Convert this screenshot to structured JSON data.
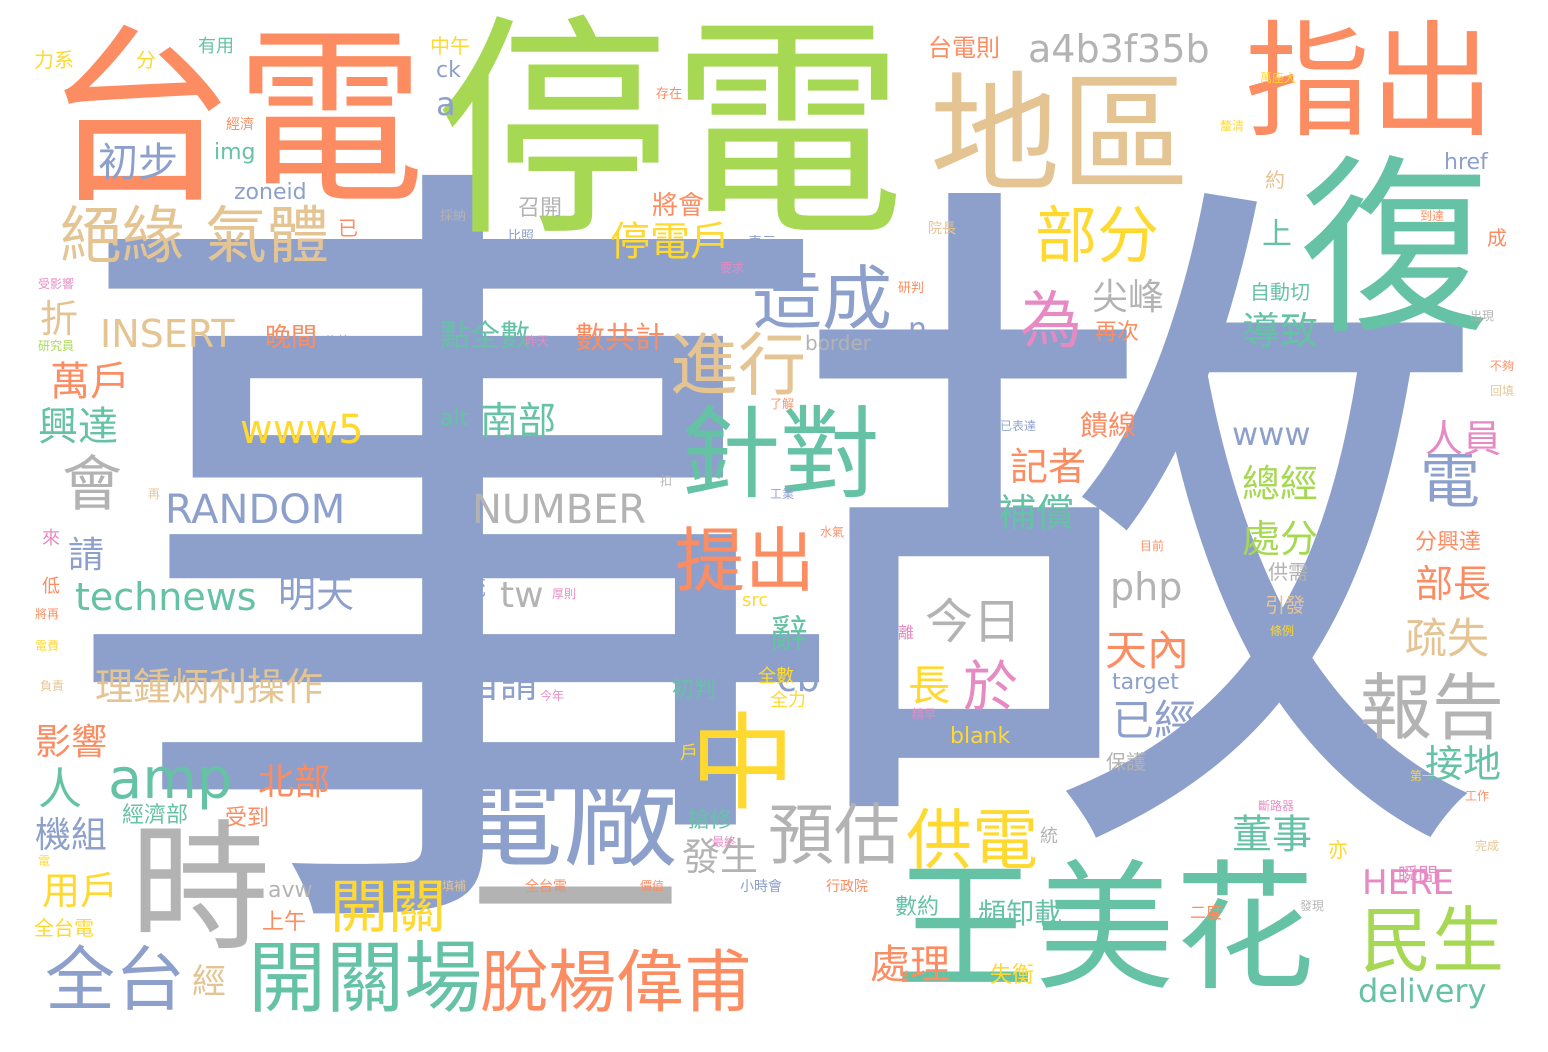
{
  "palette": {
    "blue": "#8da0cb",
    "green": "#a6d854",
    "teal": "#66c2a5",
    "orange": "#fc8d62",
    "pink": "#e78ac3",
    "yellow": "#ffd92f",
    "tan": "#e5c494",
    "gray": "#b3b3b3"
  },
  "words": [
    {
      "text": "事",
      "color": "blue"
    },
    {
      "text": "故",
      "color": "blue"
    },
    {
      "text": "停電",
      "color": "green"
    },
    {
      "text": "台電",
      "color": "orange"
    },
    {
      "text": "復",
      "color": "teal"
    },
    {
      "text": "地區",
      "color": "tan"
    },
    {
      "text": "指出",
      "color": "orange"
    },
    {
      "text": "王美花",
      "color": "teal"
    },
    {
      "text": "電廠",
      "color": "blue"
    },
    {
      "text": "時",
      "color": "gray"
    },
    {
      "text": "中",
      "color": "yellow"
    },
    {
      "text": "一",
      "color": "gray"
    },
    {
      "text": "針對",
      "color": "teal"
    },
    {
      "text": "開關場",
      "color": "teal"
    },
    {
      "text": "脫楊偉甫",
      "color": "orange"
    },
    {
      "text": "造成",
      "color": "blue"
    },
    {
      "text": "部分",
      "color": "yellow"
    },
    {
      "text": "絕緣",
      "color": "tan"
    },
    {
      "text": "氣體",
      "color": "tan"
    },
    {
      "text": "全台",
      "color": "blue"
    },
    {
      "text": "民生",
      "color": "green"
    },
    {
      "text": "報告",
      "color": "gray"
    },
    {
      "text": "提出",
      "color": "orange"
    },
    {
      "text": "進行",
      "color": "tan"
    },
    {
      "text": "預估",
      "color": "gray"
    },
    {
      "text": "供電",
      "color": "yellow"
    },
    {
      "text": "開關",
      "color": "yellow"
    },
    {
      "text": "amp",
      "color": "teal"
    },
    {
      "text": "為",
      "color": "pink"
    },
    {
      "text": "電",
      "color": "blue"
    },
    {
      "text": "會",
      "color": "gray"
    },
    {
      "text": "初步",
      "color": "blue"
    },
    {
      "text": "a4b3f35b",
      "color": "gray"
    },
    {
      "text": "停電戶",
      "color": "yellow"
    },
    {
      "text": "今日",
      "color": "gray"
    },
    {
      "text": "於",
      "color": "pink"
    },
    {
      "text": "跳",
      "color": "orange"
    },
    {
      "text": "處理",
      "color": "orange"
    },
    {
      "text": "萬戶",
      "color": "orange"
    },
    {
      "text": "興達",
      "color": "teal"
    },
    {
      "text": "INSERT",
      "color": "tan"
    },
    {
      "text": "RANDOM",
      "color": "blue"
    },
    {
      "text": "NUMBER",
      "color": "gray"
    },
    {
      "text": "www5",
      "color": "yellow"
    },
    {
      "text": "technews",
      "color": "teal"
    },
    {
      "text": "明天",
      "color": "blue"
    },
    {
      "text": "理鍾炳利操作",
      "color": "tan"
    },
    {
      "text": "南部",
      "color": "teal"
    },
    {
      "text": "www",
      "color": "blue"
    },
    {
      "text": "php",
      "color": "gray"
    },
    {
      "text": "tw",
      "color": "gray"
    },
    {
      "text": "自請",
      "color": "blue"
    },
    {
      "text": "長",
      "color": "yellow"
    },
    {
      "text": "天內",
      "color": "orange"
    },
    {
      "text": "已經",
      "color": "blue"
    },
    {
      "text": "尖峰",
      "color": "gray"
    },
    {
      "text": "導致",
      "color": "teal"
    },
    {
      "text": "總經",
      "color": "green"
    },
    {
      "text": "處分",
      "color": "green"
    },
    {
      "text": "部長",
      "color": "orange"
    },
    {
      "text": "疏失",
      "color": "tan"
    },
    {
      "text": "接地",
      "color": "teal"
    },
    {
      "text": "人員",
      "color": "pink"
    },
    {
      "text": "記者",
      "color": "orange"
    },
    {
      "text": "補償",
      "color": "teal"
    },
    {
      "text": "饋線",
      "color": "orange"
    },
    {
      "text": "董事",
      "color": "teal"
    },
    {
      "text": "發生",
      "color": "gray"
    },
    {
      "text": "北部",
      "color": "orange"
    },
    {
      "text": "影響",
      "color": "orange"
    },
    {
      "text": "人",
      "color": "teal"
    },
    {
      "text": "機組",
      "color": "blue"
    },
    {
      "text": "用戶",
      "color": "yellow"
    },
    {
      "text": "請",
      "color": "blue"
    },
    {
      "text": "折",
      "color": "tan"
    },
    {
      "text": "晚間",
      "color": "orange"
    },
    {
      "text": "點全數",
      "color": "teal"
    },
    {
      "text": "數共計",
      "color": "orange"
    },
    {
      "text": "cb",
      "color": "blue"
    },
    {
      "text": "辭",
      "color": "teal"
    },
    {
      "text": "HERE",
      "color": "pink"
    },
    {
      "text": "delivery",
      "color": "teal"
    },
    {
      "text": "經",
      "color": "tan"
    },
    {
      "text": "上午",
      "color": "orange"
    },
    {
      "text": "頻卸載",
      "color": "teal"
    },
    {
      "text": "數約",
      "color": "teal"
    },
    {
      "text": "失衡",
      "color": "yellow"
    },
    {
      "text": "搶修",
      "color": "teal"
    },
    {
      "text": "初判",
      "color": "teal"
    },
    {
      "text": "經濟部",
      "color": "teal"
    },
    {
      "text": "受到",
      "color": "orange"
    },
    {
      "text": "avw",
      "color": "gray"
    },
    {
      "text": "n",
      "color": "blue"
    },
    {
      "text": "上",
      "color": "teal"
    },
    {
      "text": "將會",
      "color": "orange"
    },
    {
      "text": "召開",
      "color": "gray"
    },
    {
      "text": "再次",
      "color": "orange"
    },
    {
      "text": "自動切",
      "color": "teal"
    },
    {
      "text": "border",
      "color": "gray"
    },
    {
      "text": "a",
      "color": "blue"
    },
    {
      "text": "ck",
      "color": "blue"
    },
    {
      "text": "img",
      "color": "teal"
    },
    {
      "text": "zoneid",
      "color": "blue"
    },
    {
      "text": "中午",
      "color": "yellow"
    },
    {
      "text": "台電則",
      "color": "orange"
    },
    {
      "text": "有用",
      "color": "teal"
    },
    {
      "text": "分",
      "color": "yellow"
    },
    {
      "text": "力系",
      "color": "yellow"
    },
    {
      "text": "alt",
      "color": "teal"
    },
    {
      "text": "系統",
      "color": "blue"
    },
    {
      "text": "src",
      "color": "yellow"
    },
    {
      "text": "target",
      "color": "blue"
    },
    {
      "text": "blank",
      "color": "yellow"
    },
    {
      "text": "href",
      "color": "blue"
    },
    {
      "text": "約",
      "color": "tan"
    },
    {
      "text": "成",
      "color": "orange"
    },
    {
      "text": "已",
      "color": "orange"
    },
    {
      "text": "分興達",
      "color": "orange"
    },
    {
      "text": "供需",
      "color": "gray"
    },
    {
      "text": "引發",
      "color": "tan"
    },
    {
      "text": "保護",
      "color": "gray"
    },
    {
      "text": "全數",
      "color": "yellow"
    },
    {
      "text": "全力",
      "color": "yellow"
    },
    {
      "text": "戶",
      "color": "yellow"
    },
    {
      "text": "低",
      "color": "orange"
    },
    {
      "text": "來",
      "color": "pink"
    },
    {
      "text": "全台電",
      "color": "yellow"
    },
    {
      "text": "瞬間",
      "color": "pink"
    },
    {
      "text": "亦",
      "color": "yellow"
    },
    {
      "text": "統",
      "color": "gray"
    },
    {
      "text": "二度",
      "color": "orange"
    },
    {
      "text": "表示",
      "color": "blue"
    },
    {
      "text": "比照",
      "color": "blue"
    },
    {
      "text": "力度",
      "color": "blue"
    },
    {
      "text": "加倍",
      "color": "blue"
    },
    {
      "text": "採納",
      "color": "gray"
    },
    {
      "text": "經濟",
      "color": "orange"
    },
    {
      "text": "存在",
      "color": "orange"
    },
    {
      "text": "釐清",
      "color": "yellow"
    },
    {
      "text": "全台電",
      "color": "orange"
    },
    {
      "text": "小時會",
      "color": "blue"
    },
    {
      "text": "行政院",
      "color": "orange"
    },
    {
      "text": "填補",
      "color": "tan"
    },
    {
      "text": "研判",
      "color": "orange"
    },
    {
      "text": "昨天",
      "color": "pink"
    },
    {
      "text": "修剪",
      "color": "blue"
    },
    {
      "text": "今年",
      "color": "pink"
    },
    {
      "text": "厚則",
      "color": "pink"
    },
    {
      "text": "精早",
      "color": "pink"
    },
    {
      "text": "負責",
      "color": "tan"
    },
    {
      "text": "電費",
      "color": "yellow"
    },
    {
      "text": "將再",
      "color": "orange"
    },
    {
      "text": "研究員",
      "color": "green"
    },
    {
      "text": "受影響",
      "color": "pink"
    },
    {
      "text": "電",
      "color": "yellow"
    },
    {
      "text": "不夠",
      "color": "orange"
    },
    {
      "text": "回填",
      "color": "tan"
    },
    {
      "text": "出現",
      "color": "gray"
    },
    {
      "text": "完成",
      "color": "tan"
    },
    {
      "text": "工作",
      "color": "orange"
    },
    {
      "text": "斷路器",
      "color": "pink"
    },
    {
      "text": "第一",
      "color": "yellow"
    },
    {
      "text": "目前",
      "color": "orange"
    },
    {
      "text": "工業",
      "color": "blue"
    },
    {
      "text": "水氣",
      "color": "orange"
    },
    {
      "text": "再",
      "color": "tan"
    },
    {
      "text": "扣",
      "color": "gray"
    },
    {
      "text": "了解",
      "color": "orange"
    },
    {
      "text": "已表達",
      "color": "blue"
    },
    {
      "text": "離",
      "color": "pink"
    },
    {
      "text": "條例",
      "color": "yellow"
    },
    {
      "text": "要求",
      "color": "pink"
    },
    {
      "text": "院長",
      "color": "tan"
    },
    {
      "text": "到達",
      "color": "orange"
    },
    {
      "text": "萬座大",
      "color": "yellow"
    },
    {
      "text": "最終",
      "color": "pink"
    },
    {
      "text": "價值",
      "color": "orange"
    },
    {
      "text": "發現",
      "color": "gray"
    }
  ]
}
